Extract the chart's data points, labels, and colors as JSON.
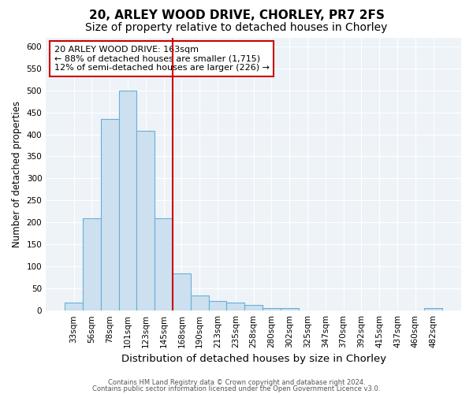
{
  "title1": "20, ARLEY WOOD DRIVE, CHORLEY, PR7 2FS",
  "title2": "Size of property relative to detached houses in Chorley",
  "xlabel": "Distribution of detached houses by size in Chorley",
  "ylabel": "Number of detached properties",
  "footer1": "Contains HM Land Registry data © Crown copyright and database right 2024.",
  "footer2": "Contains public sector information licensed under the Open Government Licence v3.0.",
  "bar_labels": [
    "33sqm",
    "56sqm",
    "78sqm",
    "101sqm",
    "123sqm",
    "145sqm",
    "168sqm",
    "190sqm",
    "213sqm",
    "235sqm",
    "258sqm",
    "280sqm",
    "302sqm",
    "325sqm",
    "347sqm",
    "370sqm",
    "392sqm",
    "415sqm",
    "437sqm",
    "460sqm",
    "482sqm"
  ],
  "bar_values": [
    18,
    210,
    435,
    500,
    408,
    210,
    85,
    35,
    22,
    18,
    13,
    5,
    5,
    0,
    0,
    0,
    0,
    0,
    0,
    0,
    5
  ],
  "bar_color": "#cce0f0",
  "bar_edgecolor": "#6aaed6",
  "vline_x": 6,
  "vline_color": "#cc0000",
  "annotation_text": "20 ARLEY WOOD DRIVE: 163sqm\n← 88% of detached houses are smaller (1,715)\n12% of semi-detached houses are larger (226) →",
  "annotation_box_edgecolor": "#cc0000",
  "ylim": [
    0,
    620
  ],
  "yticks": [
    0,
    50,
    100,
    150,
    200,
    250,
    300,
    350,
    400,
    450,
    500,
    550,
    600
  ],
  "bg_color": "#eef3f8",
  "grid_color": "#ffffff",
  "title1_fontsize": 11,
  "title2_fontsize": 10,
  "xlabel_fontsize": 9.5,
  "ylabel_fontsize": 8.5,
  "tick_fontsize": 7.5,
  "annotation_fontsize": 8,
  "footer_fontsize": 6
}
